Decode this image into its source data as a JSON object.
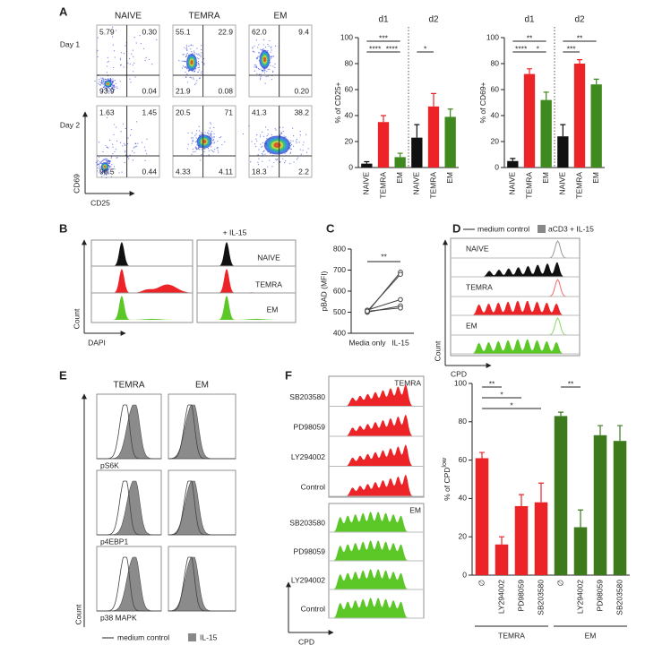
{
  "panels": {
    "a": "A",
    "b": "B",
    "c": "C",
    "d": "D",
    "e": "E",
    "f": "F"
  },
  "flow": {
    "columns": [
      "NAIVE",
      "TEMRA",
      "EM"
    ],
    "rows": [
      "Day 1",
      "Day 2"
    ],
    "y_axis": "CD69",
    "x_axis": "CD25",
    "quadrants": [
      [
        [
          "5.79",
          "0.30",
          "93.9",
          "0.04"
        ],
        [
          "55.1",
          "22.9",
          "21.9",
          "0.08"
        ],
        [
          "62.0",
          "9.4",
          null,
          "0.20"
        ]
      ],
      [
        [
          "1.63",
          "1.45",
          "96.5",
          "0.44"
        ],
        [
          "20.5",
          "71",
          "4.33",
          "4.11"
        ],
        [
          "41.3",
          "38.2",
          "18.3",
          "2.2"
        ]
      ]
    ]
  },
  "chart_data": [
    {
      "type": "bar",
      "y_label": "% of CD25+",
      "group_labels": [
        "d1",
        "d2"
      ],
      "categories": [
        "NAIVE",
        "TEMRA",
        "EM",
        "NAIVE",
        "TEMRA",
        "EM"
      ],
      "values": [
        3,
        35,
        8,
        23,
        47,
        39
      ],
      "errors": [
        1.5,
        5,
        3,
        10,
        10,
        6
      ],
      "colors": [
        "#111111",
        "#ec2327",
        "#3f8a1f",
        "#111111",
        "#ec2327",
        "#3f8a1f"
      ],
      "ylim": [
        0,
        100
      ],
      "yticks": [
        0,
        20,
        40,
        60,
        80,
        100
      ],
      "annotations": [
        "***",
        "****",
        "****",
        "*"
      ]
    },
    {
      "type": "bar",
      "y_label": "% of CD69+",
      "group_labels": [
        "d1",
        "d2"
      ],
      "categories": [
        "NAIVE",
        "TEMRA",
        "EM",
        "NAIVE",
        "TEMRA",
        "EM"
      ],
      "values": [
        5,
        72,
        52,
        24,
        80,
        64
      ],
      "errors": [
        2,
        4,
        6,
        9,
        3,
        4
      ],
      "colors": [
        "#111111",
        "#ec2327",
        "#3f8a1f",
        "#111111",
        "#ec2327",
        "#3f8a1f"
      ],
      "ylim": [
        0,
        100
      ],
      "yticks": [
        0,
        20,
        40,
        60,
        80,
        100
      ],
      "annotations": [
        "**",
        "****",
        "*",
        "**",
        "***"
      ]
    },
    {
      "type": "line",
      "y_label": "pBAD (MFI)",
      "categories": [
        "Media only",
        "IL-15"
      ],
      "series": [
        {
          "color": "#444444",
          "values": [
            500,
            690
          ]
        },
        {
          "color": "#444444",
          "values": [
            505,
            680
          ]
        },
        {
          "color": "#444444",
          "values": [
            510,
            560
          ]
        },
        {
          "color": "#444444",
          "values": [
            500,
            530
          ]
        },
        {
          "color": "#444444",
          "values": [
            505,
            520
          ]
        }
      ],
      "ylim": [
        400,
        800
      ],
      "yticks": [
        400,
        500,
        600,
        700,
        800
      ],
      "annotations": [
        "**"
      ]
    },
    {
      "type": "bar",
      "y_label": "% of CPD",
      "y_label_superscript": "low",
      "group_labels": [
        "TEMRA",
        "EM"
      ],
      "categories": [
        "∅",
        "LY294002",
        "PD98059",
        "SB203580",
        "∅",
        "LY294002",
        "PD98059",
        "SB203580"
      ],
      "values": [
        61,
        16,
        36,
        38,
        83,
        25,
        73,
        70
      ],
      "errors": [
        3,
        4,
        6,
        10,
        2,
        9,
        5,
        8
      ],
      "colors": [
        "#ec2327",
        "#ec2327",
        "#ec2327",
        "#ec2327",
        "#3c7a1c",
        "#3c7a1c",
        "#3c7a1c",
        "#3c7a1c"
      ],
      "ylim": [
        0,
        100
      ],
      "yticks": [
        0,
        20,
        40,
        60,
        80,
        100
      ],
      "annotations": [
        "**",
        "*",
        "*",
        "**"
      ]
    }
  ],
  "hist_b": {
    "title": "+ IL-15",
    "labels": [
      "NAIVE",
      "TEMRA",
      "EM"
    ],
    "y_axis": "Count",
    "x_axis": "DAPI"
  },
  "hist_d": {
    "legend": [
      "medium control",
      "aCD3 + IL-15"
    ],
    "labels": [
      "NAIVE",
      "TEMRA",
      "EM"
    ],
    "y_axis": "Count",
    "x_axis": "CPD"
  },
  "hist_e": {
    "columns": [
      "TEMRA",
      "EM"
    ],
    "rows": [
      "pS6K",
      "p4EBP1",
      "p38 MAPK"
    ],
    "y_axis": "Count",
    "legend": [
      "medium control",
      "IL-15"
    ]
  },
  "hist_f": {
    "groups": [
      "TEMRA",
      "EM"
    ],
    "rows": [
      "SB203580",
      "PD98059",
      "LY294002",
      "Control"
    ],
    "x_axis": "CPD"
  }
}
